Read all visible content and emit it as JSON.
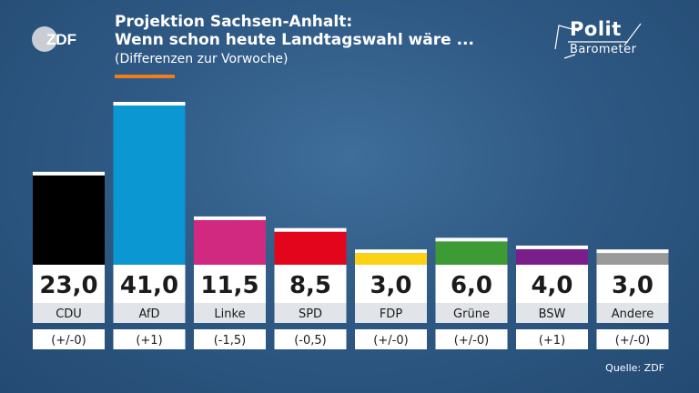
{
  "header": {
    "title_line1": "Projektion Sachsen-Anhalt:",
    "title_line2": "Wenn schon heute Landtagswahl wäre ...",
    "subtitle": "(Differenzen zur Vorwoche)"
  },
  "brand": {
    "channel_logo": "ZDF",
    "program_logo_line1": "Polit",
    "program_logo_line2": "Barometer"
  },
  "source": "Quelle: ZDF",
  "chart_data": {
    "type": "bar",
    "title": "Projektion Sachsen-Anhalt: Wenn schon heute Landtagswahl wäre ...",
    "subtitle": "(Differenzen zur Vorwoche)",
    "categories": [
      "CDU",
      "AfD",
      "Linke",
      "SPD",
      "FDP",
      "Grüne",
      "BSW",
      "Andere"
    ],
    "values": [
      23.0,
      41.0,
      11.5,
      8.5,
      3.0,
      6.0,
      4.0,
      3.0
    ],
    "value_labels": [
      "23,0",
      "41,0",
      "11,5",
      "8,5",
      "3,0",
      "6,0",
      "4,0",
      "3,0"
    ],
    "changes": [
      "(+/-0)",
      "(+1)",
      "(-1,5)",
      "(-0,5)",
      "(+/-0)",
      "(+/-0)",
      "(+1)",
      "(+/-0)"
    ],
    "colors": [
      "#000000",
      "#0a97d2",
      "#d0297f",
      "#e3051b",
      "#fcd212",
      "#3d9b35",
      "#7a1e8c",
      "#9a9a9a"
    ],
    "ylim": [
      0,
      41
    ],
    "grid": false,
    "legend": "none"
  }
}
